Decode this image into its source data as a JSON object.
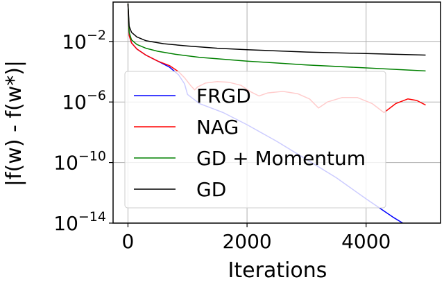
{
  "chart_data": {
    "type": "line",
    "xlabel": "Iterations",
    "ylabel": "|f(w) - f(w*)|",
    "xlim": [
      -250,
      5250
    ],
    "ylog": true,
    "ylim_exp": [
      -14,
      0.6
    ],
    "xticks": [
      0,
      2000,
      4000
    ],
    "xtick_labels": [
      "0",
      "2000",
      "4000"
    ],
    "yticks_exp": [
      -2,
      -6,
      -10,
      -14
    ],
    "ytick_base": "10",
    "ytick_exponents": [
      "−2",
      "−6",
      "−10",
      "−14"
    ],
    "grid": true,
    "legend_position": "lower-left",
    "series": [
      {
        "name": "FRGD",
        "color": "#0000ff",
        "points": [
          [
            0,
            0.5
          ],
          [
            20,
            -1.6
          ],
          [
            60,
            -2.1
          ],
          [
            150,
            -2.5
          ],
          [
            300,
            -2.9
          ],
          [
            500,
            -3.3
          ],
          [
            700,
            -3.7
          ],
          [
            850,
            -4.2
          ],
          [
            950,
            -4.8
          ],
          [
            1000,
            -5.5
          ],
          [
            1200,
            -6.1
          ],
          [
            1600,
            -6.7
          ],
          [
            2000,
            -7.5
          ],
          [
            2500,
            -8.6
          ],
          [
            3000,
            -9.8
          ],
          [
            3500,
            -11.0
          ],
          [
            4000,
            -12.4
          ],
          [
            4450,
            -13.6
          ],
          [
            4700,
            -14.2
          ]
        ]
      },
      {
        "name": "NAG",
        "color": "#ff0000",
        "points": [
          [
            0,
            0.5
          ],
          [
            20,
            -1.6
          ],
          [
            60,
            -2.1
          ],
          [
            150,
            -2.5
          ],
          [
            300,
            -2.9
          ],
          [
            500,
            -3.3
          ],
          [
            700,
            -3.6
          ],
          [
            850,
            -4.0
          ],
          [
            950,
            -4.4
          ],
          [
            1050,
            -4.9
          ],
          [
            1120,
            -5.2
          ],
          [
            1170,
            -5.0
          ],
          [
            1300,
            -4.75
          ],
          [
            1500,
            -4.65
          ],
          [
            1700,
            -4.7
          ],
          [
            1900,
            -4.9
          ],
          [
            2050,
            -5.3
          ],
          [
            2200,
            -5.6
          ],
          [
            2350,
            -5.4
          ],
          [
            2600,
            -5.3
          ],
          [
            2850,
            -5.45
          ],
          [
            3050,
            -5.8
          ],
          [
            3200,
            -6.4
          ],
          [
            3350,
            -6.0
          ],
          [
            3600,
            -5.7
          ],
          [
            3850,
            -5.7
          ],
          [
            4100,
            -6.1
          ],
          [
            4300,
            -6.7
          ],
          [
            4500,
            -6.1
          ],
          [
            4700,
            -5.8
          ],
          [
            4850,
            -5.9
          ],
          [
            5000,
            -6.2
          ]
        ]
      },
      {
        "name": "GD + Momentum",
        "color": "#008000",
        "points": [
          [
            0,
            0.5
          ],
          [
            20,
            -1.4
          ],
          [
            60,
            -1.9
          ],
          [
            150,
            -2.2
          ],
          [
            300,
            -2.45
          ],
          [
            500,
            -2.65
          ],
          [
            800,
            -2.85
          ],
          [
            1200,
            -3.05
          ],
          [
            2000,
            -3.3
          ],
          [
            3000,
            -3.55
          ],
          [
            4000,
            -3.75
          ],
          [
            5000,
            -3.95
          ]
        ]
      },
      {
        "name": "GD",
        "color": "#000000",
        "points": [
          [
            0,
            0.5
          ],
          [
            20,
            -1.0
          ],
          [
            60,
            -1.4
          ],
          [
            150,
            -1.7
          ],
          [
            300,
            -1.95
          ],
          [
            600,
            -2.15
          ],
          [
            1000,
            -2.3
          ],
          [
            1500,
            -2.45
          ],
          [
            2000,
            -2.55
          ],
          [
            3000,
            -2.7
          ],
          [
            4000,
            -2.8
          ],
          [
            5000,
            -2.9
          ]
        ]
      }
    ]
  }
}
